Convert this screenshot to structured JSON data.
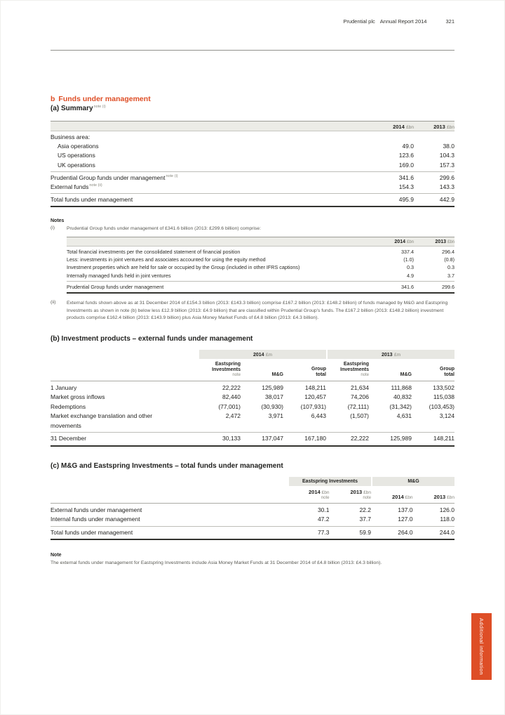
{
  "header": {
    "brand": "Prudential plc",
    "report": "Annual Report 2014",
    "page_number": "321"
  },
  "colors": {
    "accent": "#de4e26",
    "band_gray": "#e7e7e2",
    "rule_dark": "#33332f",
    "rule_light": "#bebeb8"
  },
  "main_heading": {
    "kicker": "b",
    "text": "Funds under management"
  },
  "summary": {
    "heading": "(a) Summary",
    "heading_note": "note (i)",
    "col_2014": {
      "year": "2014",
      "unit": "£bn"
    },
    "col_2013": {
      "year": "2013",
      "unit": "£bn"
    },
    "business_area_label": "Business area:",
    "rows": [
      {
        "label": "Asia operations",
        "v2014": "49.0",
        "v2013": "38.0"
      },
      {
        "label": "US operations",
        "v2014": "123.6",
        "v2013": "104.3"
      },
      {
        "label": "UK operations",
        "v2014": "169.0",
        "v2013": "157.3"
      }
    ],
    "group_funds": {
      "label": "Prudential Group funds under management",
      "note": "note (i)",
      "v2014": "341.6",
      "v2013": "299.6"
    },
    "external_funds": {
      "label": "External funds",
      "note": "note (ii)",
      "v2014": "154.3",
      "v2013": "143.3"
    },
    "total": {
      "label": "Total funds under management",
      "v2014": "495.9",
      "v2013": "442.9"
    }
  },
  "notes": {
    "heading": "Notes",
    "i": {
      "label": "(i)",
      "intro": "Prudential Group funds under management of £341.6 billion (2013: £299.6 billion) comprise:",
      "col_2014": {
        "year": "2014",
        "unit": "£bn"
      },
      "col_2013": {
        "year": "2013",
        "unit": "£bn"
      },
      "rows": [
        {
          "label": "Total financial investments per the consolidated statement of financial position",
          "v2014": "337.4",
          "v2013": "296.4"
        },
        {
          "label": "Less: investments in joint ventures and associates accounted for using the equity method",
          "v2014": "(1.0)",
          "v2013": "(0.8)"
        },
        {
          "label": "Investment properties which are held for sale or occupied by the Group (included in other IFRS captions)",
          "v2014": "0.3",
          "v2013": "0.3"
        },
        {
          "label": "Internally managed funds held in joint ventures",
          "v2014": "4.9",
          "v2013": "3.7"
        }
      ],
      "total": {
        "label": "Prudential Group funds under management",
        "v2014": "341.6",
        "v2013": "299.6"
      }
    },
    "ii": {
      "label": "(ii)",
      "text": "External funds shown above as at 31 December 2014 of £154.3 billion (2013: £143.3 billion) comprise £167.2 billion (2013: £148.2 billion) of funds managed by M&G and Eastspring Investments as shown in note (b) below less £12.9 billion (2013: £4.9 billion) that are classified within Prudential Group's funds. The £167.2 billion (2013: £148.2 billion) investment products comprise £162.4 billion (2013: £143.9 billion) plus Asia Money Market Funds of £4.8 billion (2013: £4.3 billion)."
    }
  },
  "investment_products": {
    "heading": "(b) Investment products – external funds under management",
    "group_2014": {
      "year": "2014",
      "unit": "£m"
    },
    "group_2013": {
      "year": "2013",
      "unit": "£m"
    },
    "col_headers": [
      {
        "name": "Eastspring\nInvestments",
        "note": "note"
      },
      {
        "name": "M&G",
        "note": ""
      },
      {
        "name": "Group\ntotal",
        "note": ""
      },
      {
        "name": "Eastspring\nInvestments",
        "note": "note"
      },
      {
        "name": "M&G",
        "note": ""
      },
      {
        "name": "Group\ntotal",
        "note": ""
      }
    ],
    "rows": [
      {
        "label": "1 January",
        "v": [
          "22,222",
          "125,989",
          "148,211",
          "21,634",
          "111,868",
          "133,502"
        ]
      },
      {
        "label": "Market gross inflows",
        "v": [
          "82,440",
          "38,017",
          "120,457",
          "74,206",
          "40,832",
          "115,038"
        ]
      },
      {
        "label": "Redemptions",
        "v": [
          "(77,001)",
          "(30,930)",
          "(107,931)",
          "(72,111)",
          "(31,342)",
          "(103,453)"
        ]
      },
      {
        "label": "Market exchange translation and other movements",
        "v": [
          "2,472",
          "3,971",
          "6,443",
          "(1,507)",
          "4,631",
          "3,124"
        ]
      }
    ],
    "total": {
      "label": "31 December",
      "v": [
        "30,133",
        "137,047",
        "167,180",
        "22,222",
        "125,989",
        "148,211"
      ]
    }
  },
  "mg_eastspring": {
    "heading": "(c) M&G and Eastspring Investments – total funds under management",
    "group_eastspring": "Eastspring Investments",
    "group_mg": "M&G",
    "col_headers": [
      {
        "year": "2014",
        "unit": "£bn",
        "note": "note"
      },
      {
        "year": "2013",
        "unit": "£bn",
        "note": "note"
      },
      {
        "year": "2014",
        "unit": "£bn",
        "note": ""
      },
      {
        "year": "2013",
        "unit": "£bn",
        "note": ""
      }
    ],
    "rows": [
      {
        "label": "External funds under management",
        "v": [
          "30.1",
          "22.2",
          "137.0",
          "126.0"
        ]
      },
      {
        "label": "Internal funds under management",
        "v": [
          "47.2",
          "37.7",
          "127.0",
          "118.0"
        ]
      }
    ],
    "total": {
      "label": "Total funds under management",
      "v": [
        "77.3",
        "59.9",
        "264.0",
        "244.0"
      ]
    }
  },
  "footnote": {
    "heading": "Note",
    "text": "The external funds under management for Eastspring Investments include Asia Money Market Funds at 31 December 2014 of £4.8 billion (2013: £4.3 billion)."
  },
  "side_tab": {
    "label": "Additional information"
  }
}
